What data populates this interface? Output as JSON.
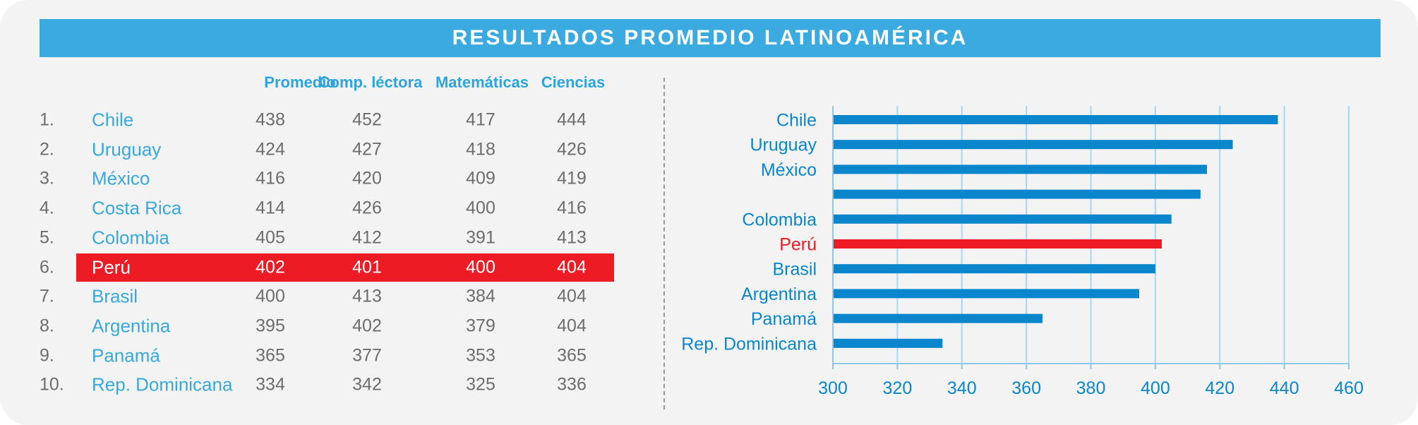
{
  "title": "RESULTADOS PROMEDIO LATINOAMÉRICA",
  "table": {
    "headers": [
      "Promedio",
      "Comp. léctora",
      "Matemáticas",
      "Ciencias"
    ],
    "rows": [
      {
        "rank": "1.",
        "country": "Chile",
        "promedio": "438",
        "lectora": "452",
        "matematicas": "417",
        "ciencias": "444"
      },
      {
        "rank": "2.",
        "country": "Uruguay",
        "promedio": "424",
        "lectora": "427",
        "matematicas": "418",
        "ciencias": "426"
      },
      {
        "rank": "3.",
        "country": "México",
        "promedio": "416",
        "lectora": "420",
        "matematicas": "409",
        "ciencias": "419"
      },
      {
        "rank": "4.",
        "country": "Costa Rica",
        "promedio": "414",
        "lectora": "426",
        "matematicas": "400",
        "ciencias": "416"
      },
      {
        "rank": "5.",
        "country": "Colombia",
        "promedio": "405",
        "lectora": "412",
        "matematicas": "391",
        "ciencias": "413"
      },
      {
        "rank": "6.",
        "country": "Perú",
        "promedio": "402",
        "lectora": "401",
        "matematicas": "400",
        "ciencias": "404"
      },
      {
        "rank": "7.",
        "country": "Brasil",
        "promedio": "400",
        "lectora": "413",
        "matematicas": "384",
        "ciencias": "404"
      },
      {
        "rank": "8.",
        "country": "Argentina",
        "promedio": "395",
        "lectora": "402",
        "matematicas": "379",
        "ciencias": "404"
      },
      {
        "rank": "9.",
        "country": "Panamá",
        "promedio": "365",
        "lectora": "377",
        "matematicas": "353",
        "ciencias": "365"
      },
      {
        "rank": "10.",
        "country": "Rep. Dominicana",
        "promedio": "334",
        "lectora": "342",
        "matematicas": "325",
        "ciencias": "336"
      }
    ],
    "highlight_country": "Perú",
    "highlight_color": "#ed1c24"
  },
  "chart_data": {
    "type": "bar",
    "orientation": "horizontal",
    "categories": [
      "Chile",
      "Uruguay",
      "México",
      "",
      "Colombia",
      "Perú",
      "Brasil",
      "Argentina",
      "Panamá",
      "Rep. Dominicana"
    ],
    "values": [
      438,
      424,
      416,
      414,
      405,
      402,
      400,
      395,
      365,
      334
    ],
    "xlim": [
      300,
      460
    ],
    "xticks": [
      300,
      320,
      340,
      360,
      380,
      400,
      420,
      440,
      460
    ],
    "grid": "vertical",
    "bar_color": "#0a86cc",
    "highlight_category": "Perú",
    "highlight_color": "#ed1c24",
    "title": "",
    "xlabel": "",
    "ylabel": ""
  }
}
